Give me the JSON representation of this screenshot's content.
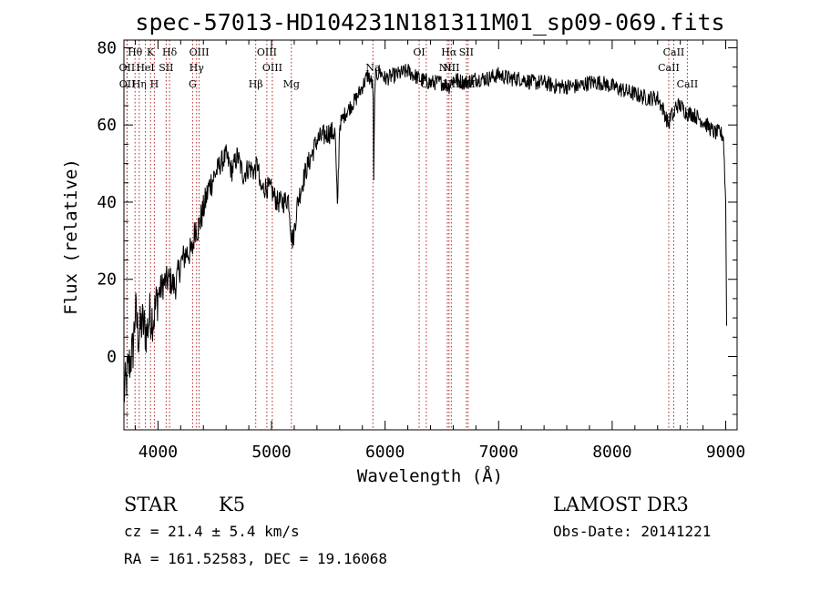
{
  "chart_data": {
    "type": "line",
    "title": "spec-57013-HD104231N181311M01_sp09-069.fits",
    "xlabel": "Wavelength (Å)",
    "ylabel": "Flux (relative)",
    "xlim": [
      3700,
      9100
    ],
    "ylim": [
      -19,
      82
    ],
    "x_ticks": [
      4000,
      5000,
      6000,
      7000,
      8000,
      9000
    ],
    "y_ticks": [
      0,
      20,
      40,
      60,
      80
    ],
    "grid": false,
    "line_color": "#000000",
    "marker_color": "#b22222",
    "spectrum_anchors": {
      "x": [
        3700,
        3740,
        3780,
        3800,
        3830,
        3860,
        3900,
        3930,
        3960,
        4000,
        4050,
        4100,
        4150,
        4200,
        4250,
        4300,
        4330,
        4350,
        4380,
        4400,
        4450,
        4500,
        4550,
        4600,
        4650,
        4700,
        4750,
        4800,
        4850,
        4880,
        4900,
        4950,
        5000,
        5050,
        5100,
        5150,
        5175,
        5190,
        5230,
        5300,
        5400,
        5500,
        5560,
        5580,
        5600,
        5650,
        5700,
        5750,
        5800,
        5850,
        5895,
        5900,
        5910,
        5950,
        6000,
        6100,
        6200,
        6300,
        6400,
        6500,
        6563,
        6600,
        6700,
        6800,
        6900,
        7000,
        7100,
        7200,
        7300,
        7400,
        7500,
        7600,
        7700,
        7800,
        7900,
        8000,
        8100,
        8200,
        8300,
        8400,
        8450,
        8498,
        8520,
        8542,
        8560,
        8600,
        8662,
        8700,
        8800,
        8900,
        8950,
        8980,
        9000,
        9010
      ],
      "y": [
        -10,
        -3,
        2,
        12,
        5,
        9,
        6,
        11,
        10,
        16,
        19,
        20,
        18,
        24,
        27,
        27,
        34,
        33,
        36,
        38,
        44,
        47,
        50,
        52,
        48,
        52,
        47,
        49,
        48,
        50,
        43,
        44,
        43,
        40,
        40,
        41,
        31,
        30,
        40,
        48,
        56,
        58,
        58,
        38,
        60,
        63,
        65,
        67,
        70,
        73,
        70,
        45,
        72,
        74,
        72,
        73,
        74,
        72,
        71,
        71,
        70,
        72,
        71,
        72,
        72,
        73,
        72,
        72,
        71,
        71,
        70,
        70,
        70,
        71,
        71,
        70,
        69,
        68,
        67,
        67,
        64,
        60,
        63,
        62,
        65,
        65,
        63,
        63,
        61,
        58,
        58,
        57,
        40,
        0
      ]
    },
    "spectral_lines": [
      {
        "label": "Hθ",
        "wavelength": 3798,
        "row": 1
      },
      {
        "label": "K",
        "wavelength": 3934,
        "row": 1
      },
      {
        "label": "Hδ",
        "wavelength": 4102,
        "row": 1
      },
      {
        "label": "OIII",
        "wavelength": 4363,
        "row": 1
      },
      {
        "label": "OIII",
        "wavelength": 4959,
        "row": 1
      },
      {
        "label": "OI",
        "wavelength": 6300,
        "row": 1
      },
      {
        "label": "Hα",
        "wavelength": 6563,
        "row": 1
      },
      {
        "label": "SII",
        "wavelength": 6716,
        "row": 1
      },
      {
        "label": "CaII",
        "wavelength": 8542,
        "row": 1
      },
      {
        "label": "OII",
        "wavelength": 3727,
        "row": 2
      },
      {
        "label": "HeI",
        "wavelength": 3889,
        "row": 2
      },
      {
        "label": "SII",
        "wavelength": 4072,
        "row": 2
      },
      {
        "label": "Hγ",
        "wavelength": 4340,
        "row": 2
      },
      {
        "label": "OIII",
        "wavelength": 5007,
        "row": 2
      },
      {
        "label": "Na",
        "wavelength": 5893,
        "row": 2
      },
      {
        "label": "NII",
        "wavelength": 6548,
        "row": 2
      },
      {
        "label": "NII",
        "wavelength": 6583,
        "row": 2
      },
      {
        "label": "CaII",
        "wavelength": 8498,
        "row": 2
      },
      {
        "label": "OII",
        "wavelength": 3729,
        "row": 3
      },
      {
        "label": "Hη",
        "wavelength": 3835,
        "row": 3
      },
      {
        "label": "H",
        "wavelength": 3968,
        "row": 3
      },
      {
        "label": "G",
        "wavelength": 4305,
        "row": 3
      },
      {
        "label": "Hβ",
        "wavelength": 4861,
        "row": 3
      },
      {
        "label": "Mg",
        "wavelength": 5175,
        "row": 3
      },
      {
        "label": "OI",
        "wavelength": 6363,
        "row": 3
      },
      {
        "label": "NII",
        "wavelength": 6583,
        "row": 3
      },
      {
        "label": "SII",
        "wavelength": 6731,
        "row": 3
      },
      {
        "label": "CaII",
        "wavelength": 8662,
        "row": 3
      }
    ],
    "extra_line_wavelengths": [
      3889,
      6548,
      6716,
      6731
    ]
  },
  "info": {
    "object_class": "STAR",
    "subclass": "K5",
    "survey": "LAMOST DR3",
    "cz": "cz = 21.4 ± 5.4 km/s",
    "obs_date": "Obs-Date: 20141221",
    "coords": "RA = 161.52583, DEC =  19.16068"
  }
}
